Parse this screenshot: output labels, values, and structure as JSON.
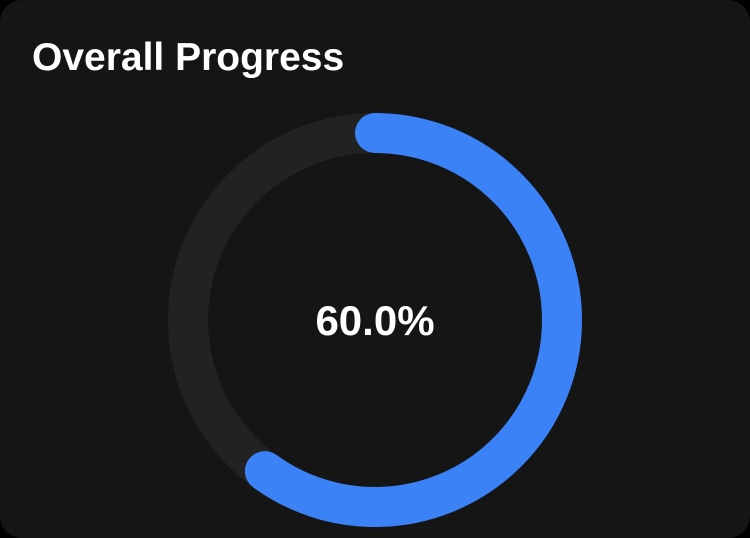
{
  "card": {
    "title": "Overall Progress"
  },
  "progress": {
    "value_fraction": 0.6,
    "label": "60.0%",
    "track_color": "#222223",
    "fill_color": "#3b82f6"
  }
}
